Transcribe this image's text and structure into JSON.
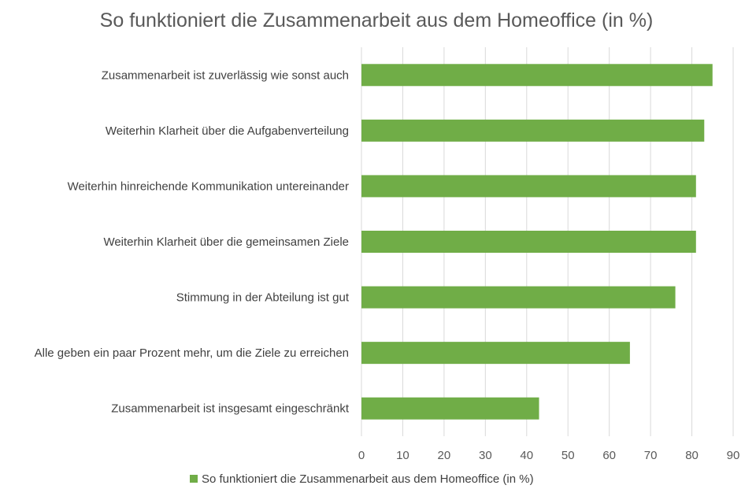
{
  "chart_data": {
    "type": "bar",
    "orientation": "horizontal",
    "title": "So funktioniert die Zusammenarbeit aus dem Homeoffice (in %)",
    "categories": [
      "Zusammenarbeit ist zuverlässig wie sonst auch",
      "Weiterhin Klarheit über die Aufgabenverteilung",
      "Weiterhin hinreichende Kommunikation untereinander",
      "Weiterhin Klarheit über die gemeinsamen Ziele",
      "Stimmung in der Abteilung ist gut",
      "Alle geben ein paar Prozent mehr, um die Ziele zu erreichen",
      "Zusammenarbeit ist insgesamt eingeschränkt"
    ],
    "series": [
      {
        "name": "So funktioniert die Zusammenarbeit aus dem Homeoffice (in %)",
        "values": [
          85,
          83,
          81,
          81,
          76,
          65,
          43
        ],
        "color": "#70AD47"
      }
    ],
    "xlim": [
      0,
      90
    ],
    "xticks": [
      "0",
      "10",
      "20",
      "30",
      "40",
      "50",
      "60",
      "70",
      "80",
      "90"
    ],
    "grid": true,
    "legend_position": "bottom",
    "colors": {
      "grid": "#D9D9D9",
      "bar": "#70AD47"
    }
  }
}
